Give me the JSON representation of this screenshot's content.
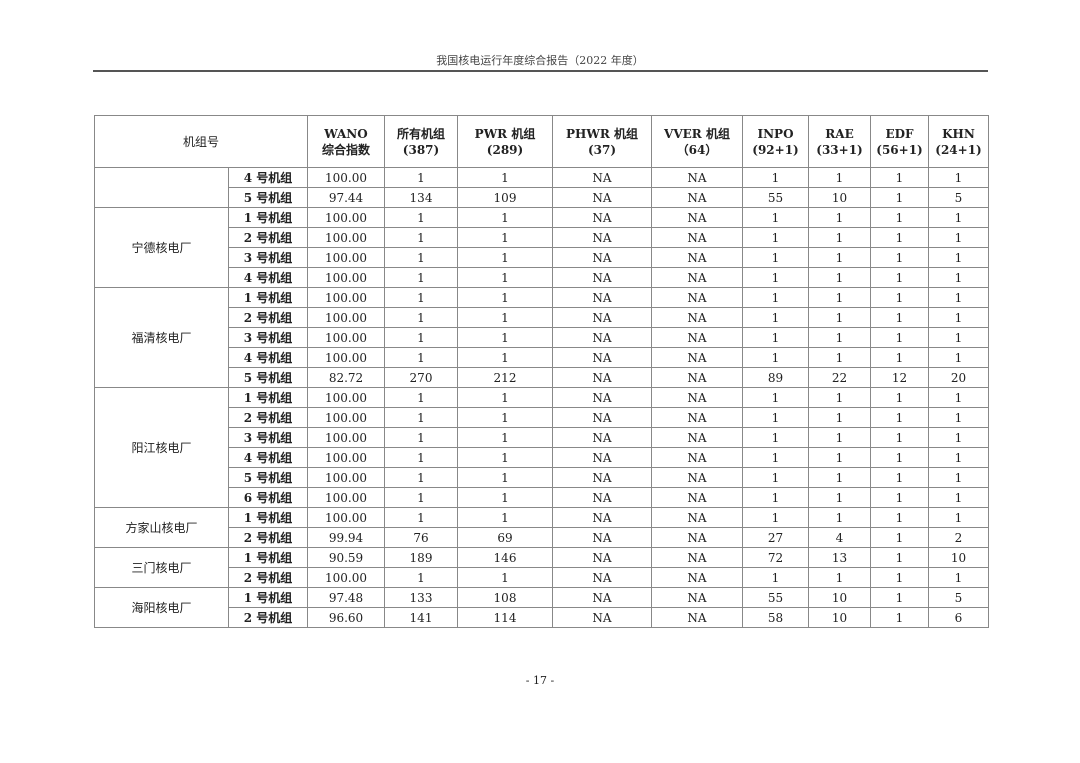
{
  "header": "我国核电运行年度综合报告（2022 年度）",
  "table": {
    "columns": [
      "机组号",
      "WANO\n综合指数",
      "所有机组\n(387)",
      "PWR 机组\n(289)",
      "PHWR 机组\n(37)",
      "VVER 机组\n（64）",
      "INPO\n(92+1)",
      "RAE\n(33+1)",
      "EDF\n(56+1)",
      "KHN\n(24+1)"
    ],
    "groups": [
      {
        "plant": "",
        "rows": [
          [
            "4 号机组",
            "100.00",
            "1",
            "1",
            "NA",
            "NA",
            "1",
            "1",
            "1",
            "1"
          ],
          [
            "5 号机组",
            "97.44",
            "134",
            "109",
            "NA",
            "NA",
            "55",
            "10",
            "1",
            "5"
          ]
        ]
      },
      {
        "plant": "宁德核电厂",
        "rows": [
          [
            "1 号机组",
            "100.00",
            "1",
            "1",
            "NA",
            "NA",
            "1",
            "1",
            "1",
            "1"
          ],
          [
            "2 号机组",
            "100.00",
            "1",
            "1",
            "NA",
            "NA",
            "1",
            "1",
            "1",
            "1"
          ],
          [
            "3 号机组",
            "100.00",
            "1",
            "1",
            "NA",
            "NA",
            "1",
            "1",
            "1",
            "1"
          ],
          [
            "4 号机组",
            "100.00",
            "1",
            "1",
            "NA",
            "NA",
            "1",
            "1",
            "1",
            "1"
          ]
        ]
      },
      {
        "plant": "福清核电厂",
        "rows": [
          [
            "1 号机组",
            "100.00",
            "1",
            "1",
            "NA",
            "NA",
            "1",
            "1",
            "1",
            "1"
          ],
          [
            "2 号机组",
            "100.00",
            "1",
            "1",
            "NA",
            "NA",
            "1",
            "1",
            "1",
            "1"
          ],
          [
            "3 号机组",
            "100.00",
            "1",
            "1",
            "NA",
            "NA",
            "1",
            "1",
            "1",
            "1"
          ],
          [
            "4 号机组",
            "100.00",
            "1",
            "1",
            "NA",
            "NA",
            "1",
            "1",
            "1",
            "1"
          ],
          [
            "5 号机组",
            "82.72",
            "270",
            "212",
            "NA",
            "NA",
            "89",
            "22",
            "12",
            "20"
          ]
        ]
      },
      {
        "plant": "阳江核电厂",
        "rows": [
          [
            "1 号机组",
            "100.00",
            "1",
            "1",
            "NA",
            "NA",
            "1",
            "1",
            "1",
            "1"
          ],
          [
            "2 号机组",
            "100.00",
            "1",
            "1",
            "NA",
            "NA",
            "1",
            "1",
            "1",
            "1"
          ],
          [
            "3 号机组",
            "100.00",
            "1",
            "1",
            "NA",
            "NA",
            "1",
            "1",
            "1",
            "1"
          ],
          [
            "4 号机组",
            "100.00",
            "1",
            "1",
            "NA",
            "NA",
            "1",
            "1",
            "1",
            "1"
          ],
          [
            "5 号机组",
            "100.00",
            "1",
            "1",
            "NA",
            "NA",
            "1",
            "1",
            "1",
            "1"
          ],
          [
            "6 号机组",
            "100.00",
            "1",
            "1",
            "NA",
            "NA",
            "1",
            "1",
            "1",
            "1"
          ]
        ]
      },
      {
        "plant": "方家山核电厂",
        "rows": [
          [
            "1 号机组",
            "100.00",
            "1",
            "1",
            "NA",
            "NA",
            "1",
            "1",
            "1",
            "1"
          ],
          [
            "2 号机组",
            "99.94",
            "76",
            "69",
            "NA",
            "NA",
            "27",
            "4",
            "1",
            "2"
          ]
        ]
      },
      {
        "plant": "三门核电厂",
        "rows": [
          [
            "1 号机组",
            "90.59",
            "189",
            "146",
            "NA",
            "NA",
            "72",
            "13",
            "1",
            "10"
          ],
          [
            "2 号机组",
            "100.00",
            "1",
            "1",
            "NA",
            "NA",
            "1",
            "1",
            "1",
            "1"
          ]
        ]
      },
      {
        "plant": "海阳核电厂",
        "rows": [
          [
            "1 号机组",
            "97.48",
            "133",
            "108",
            "NA",
            "NA",
            "55",
            "10",
            "1",
            "5"
          ],
          [
            "2 号机组",
            "96.60",
            "141",
            "114",
            "NA",
            "NA",
            "58",
            "10",
            "1",
            "6"
          ]
        ]
      }
    ]
  },
  "page_number": "- 17 -"
}
